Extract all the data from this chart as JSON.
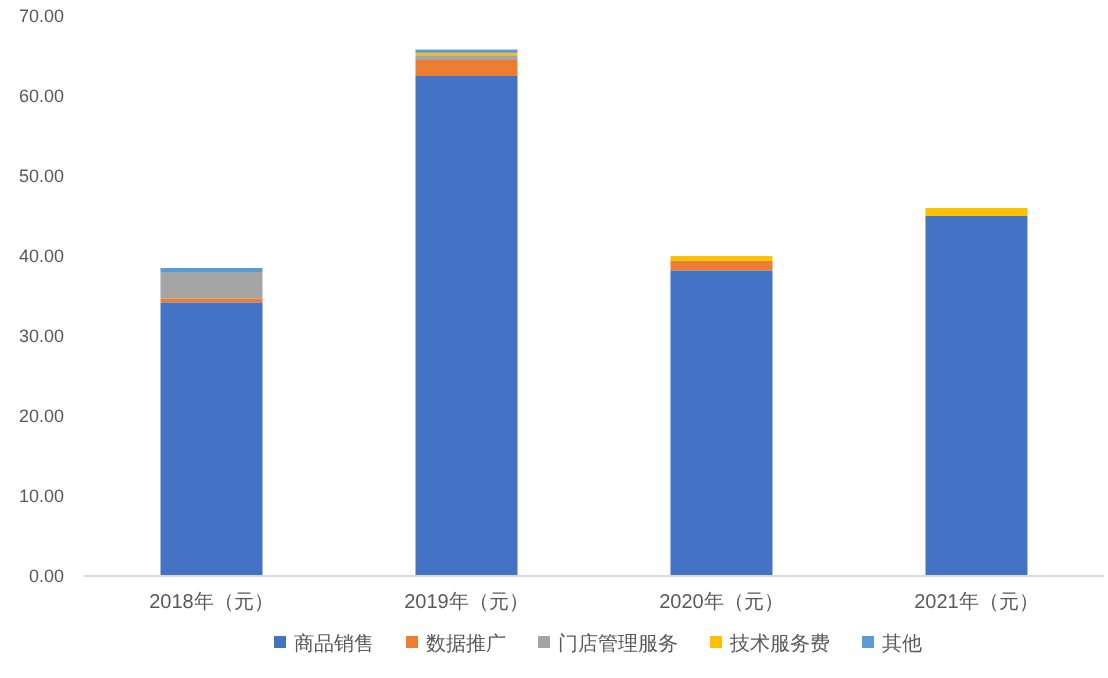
{
  "chart_data": {
    "type": "bar",
    "stacked": true,
    "categories": [
      "2018年（元）",
      "2019年（元）",
      "2020年（元）",
      "2021年（元）"
    ],
    "series": [
      {
        "name": "商品销售",
        "color": "#4472c4",
        "values": [
          34.2,
          62.5,
          38.2,
          45.0
        ]
      },
      {
        "name": "数据推广",
        "color": "#ed7d31",
        "values": [
          0.5,
          2.0,
          1.2,
          0.0
        ]
      },
      {
        "name": "门店管理服务",
        "color": "#a5a5a5",
        "values": [
          3.3,
          0.6,
          null,
          null
        ]
      },
      {
        "name": "技术服务费",
        "color": "#ffc000",
        "values": [
          0.0,
          0.3,
          0.6,
          1.0
        ]
      },
      {
        "name": "其他",
        "color": "#5b9bd5",
        "values": [
          0.5,
          0.4,
          0.0,
          0.0
        ]
      }
    ],
    "ylim": [
      0,
      70
    ],
    "yticks": [
      {
        "value": 0,
        "label": "0.00"
      },
      {
        "value": 10,
        "label": "10.00"
      },
      {
        "value": 20,
        "label": "20.00"
      },
      {
        "value": 30,
        "label": "30.00"
      },
      {
        "value": 40,
        "label": "40.00"
      },
      {
        "value": 50,
        "label": "50.00"
      },
      {
        "value": 60,
        "label": "60.00"
      },
      {
        "value": 70,
        "label": "70.00"
      }
    ],
    "grid": false,
    "legend": "bottom"
  }
}
